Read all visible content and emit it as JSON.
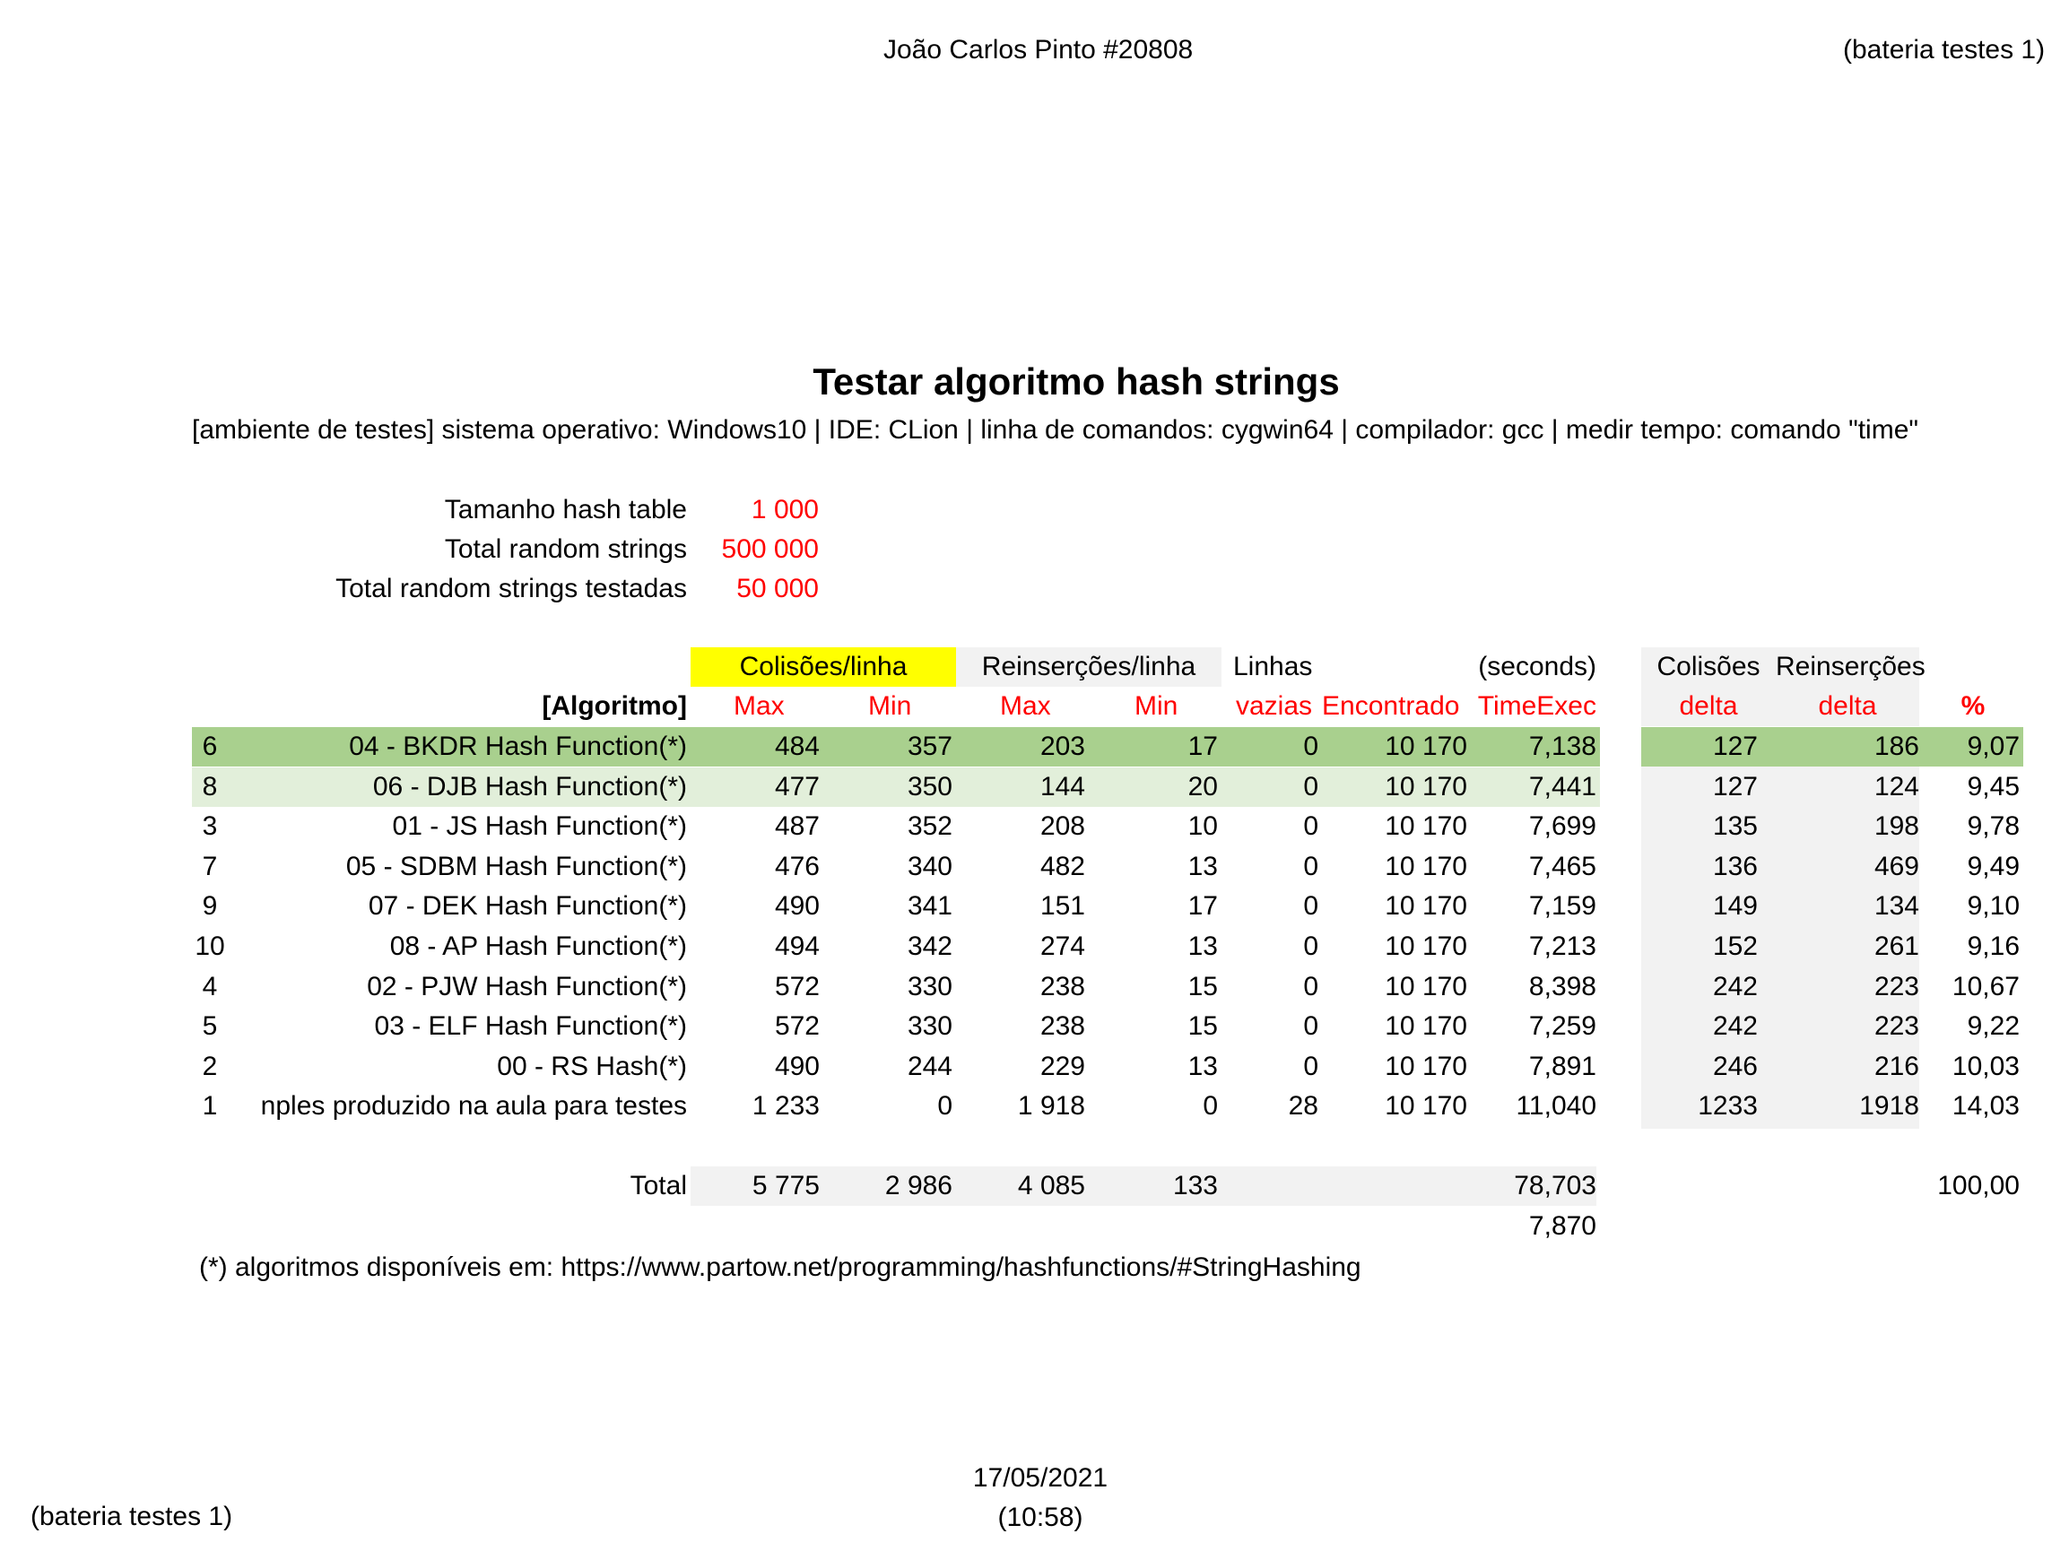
{
  "header": {
    "author": "João Carlos Pinto #20808",
    "battery_right": "(bateria testes 1)"
  },
  "title": "Testar algoritmo hash strings",
  "environment": "[ambiente de testes] sistema operativo: Windows10 | IDE: CLion | linha de comandos: cygwin64 | compilador: gcc | medir tempo: comando \"time\"",
  "params": [
    {
      "label": "Tamanho hash table",
      "value": "1 000"
    },
    {
      "label": "Total random strings",
      "value": "500 000"
    },
    {
      "label": "Total random strings testadas",
      "value": "50 000"
    }
  ],
  "table": {
    "group_headers": {
      "colisoes": "Colisões/linha",
      "reinsercoes": "Reinserções/linha",
      "linhas": "Linhas",
      "seconds": "(seconds)",
      "colisoes2": "Colisões",
      "reinsercoes2": "Reinserções"
    },
    "col_headers": {
      "algoritmo": "[Algoritmo]",
      "max1": "Max",
      "min1": "Min",
      "max2": "Max",
      "min2": "Min",
      "vazias": "vazias",
      "encontrado": "Encontrado",
      "timeexec": "TimeExec",
      "delta1": "delta",
      "delta2": "delta",
      "pct": "%"
    },
    "rows": [
      {
        "rank": "6",
        "name": "04 - BKDR Hash Function(*)",
        "cmax": "484",
        "cmin": "357",
        "rmax": "203",
        "rmin": "17",
        "vazias": "0",
        "enc": "10 170",
        "time": "7,138",
        "d1": "127",
        "d2": "186",
        "pct": "9,07"
      },
      {
        "rank": "8",
        "name": "06 - DJB Hash Function(*)",
        "cmax": "477",
        "cmin": "350",
        "rmax": "144",
        "rmin": "20",
        "vazias": "0",
        "enc": "10 170",
        "time": "7,441",
        "d1": "127",
        "d2": "124",
        "pct": "9,45"
      },
      {
        "rank": "3",
        "name": "01 - JS Hash Function(*)",
        "cmax": "487",
        "cmin": "352",
        "rmax": "208",
        "rmin": "10",
        "vazias": "0",
        "enc": "10 170",
        "time": "7,699",
        "d1": "135",
        "d2": "198",
        "pct": "9,78"
      },
      {
        "rank": "7",
        "name": "05 - SDBM Hash Function(*)",
        "cmax": "476",
        "cmin": "340",
        "rmax": "482",
        "rmin": "13",
        "vazias": "0",
        "enc": "10 170",
        "time": "7,465",
        "d1": "136",
        "d2": "469",
        "pct": "9,49"
      },
      {
        "rank": "9",
        "name": "07 - DEK Hash Function(*)",
        "cmax": "490",
        "cmin": "341",
        "rmax": "151",
        "rmin": "17",
        "vazias": "0",
        "enc": "10 170",
        "time": "7,159",
        "d1": "149",
        "d2": "134",
        "pct": "9,10"
      },
      {
        "rank": "10",
        "name": "08 - AP Hash Function(*)",
        "cmax": "494",
        "cmin": "342",
        "rmax": "274",
        "rmin": "13",
        "vazias": "0",
        "enc": "10 170",
        "time": "7,213",
        "d1": "152",
        "d2": "261",
        "pct": "9,16"
      },
      {
        "rank": "4",
        "name": "02 - PJW Hash Function(*)",
        "cmax": "572",
        "cmin": "330",
        "rmax": "238",
        "rmin": "15",
        "vazias": "0",
        "enc": "10 170",
        "time": "8,398",
        "d1": "242",
        "d2": "223",
        "pct": "10,67"
      },
      {
        "rank": "5",
        "name": "03 - ELF Hash Function(*)",
        "cmax": "572",
        "cmin": "330",
        "rmax": "238",
        "rmin": "15",
        "vazias": "0",
        "enc": "10 170",
        "time": "7,259",
        "d1": "242",
        "d2": "223",
        "pct": "9,22"
      },
      {
        "rank": "2",
        "name": "00 - RS Hash(*)",
        "cmax": "490",
        "cmin": "244",
        "rmax": "229",
        "rmin": "13",
        "vazias": "0",
        "enc": "10 170",
        "time": "7,891",
        "d1": "246",
        "d2": "216",
        "pct": "10,03"
      },
      {
        "rank": "1",
        "name": "nples produzido na aula para testes",
        "cmax": "1 233",
        "cmin": "0",
        "rmax": "1 918",
        "rmin": "0",
        "vazias": "28",
        "enc": "10 170",
        "time": "11,040",
        "d1": "1233",
        "d2": "1918",
        "pct": "14,03"
      }
    ],
    "total": {
      "label": "Total",
      "cmax": "5 775",
      "cmin": "2 986",
      "rmax": "4 085",
      "rmin": "133",
      "time": "78,703",
      "pct": "100,00",
      "avg_time": "7,870"
    }
  },
  "footnote": "(*) algoritmos disponíveis em: https://www.partow.net/programming/hashfunctions/#StringHashing",
  "footer": {
    "battery_left": "(bateria testes 1)",
    "date": "17/05/2021",
    "time": "(10:58)"
  },
  "colors": {
    "row1_green": "#a9d08e",
    "row2_green": "#e2efda",
    "yellow": "#ffff00",
    "grey": "#f2f2f2",
    "red": "#ff0000"
  }
}
